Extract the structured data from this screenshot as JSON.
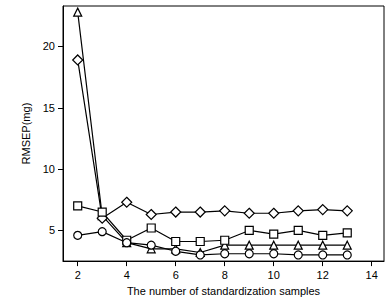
{
  "chart_data": {
    "type": "line",
    "x_label": "The number of standardization samples",
    "y_label": "RMSEP(mg)",
    "x": [
      2,
      3,
      4,
      5,
      6,
      7,
      8,
      9,
      10,
      11,
      12,
      13
    ],
    "series": [
      {
        "color": "#000000",
        "marker": "triangle",
        "values": [
          22.8,
          6.2,
          4.0,
          3.5,
          3.5,
          3.2,
          3.8,
          3.8,
          3.8,
          3.8,
          3.8,
          3.8
        ]
      },
      {
        "color": "#000000",
        "marker": "diamond",
        "values": [
          18.9,
          6.0,
          7.3,
          6.3,
          6.5,
          6.5,
          6.6,
          6.4,
          6.4,
          6.6,
          6.7,
          6.6
        ]
      },
      {
        "color": "#000000",
        "marker": "square",
        "values": [
          7.0,
          6.5,
          4.2,
          5.2,
          4.1,
          4.1,
          4.2,
          5.0,
          4.7,
          5.0,
          4.6,
          4.8
        ]
      },
      {
        "color": "#000000",
        "marker": "circle",
        "values": [
          4.6,
          4.9,
          4.0,
          3.8,
          3.3,
          3.0,
          3.1,
          3.1,
          3.1,
          3.0,
          3.0,
          3.0
        ]
      }
    ],
    "xlim": [
      1.4,
      14.5
    ],
    "xticks": [
      2,
      4,
      6,
      8,
      10,
      12,
      14
    ],
    "ylim": [
      2.5,
      23.3
    ],
    "yticks": [
      5,
      10,
      15,
      20
    ],
    "grid": false
  }
}
